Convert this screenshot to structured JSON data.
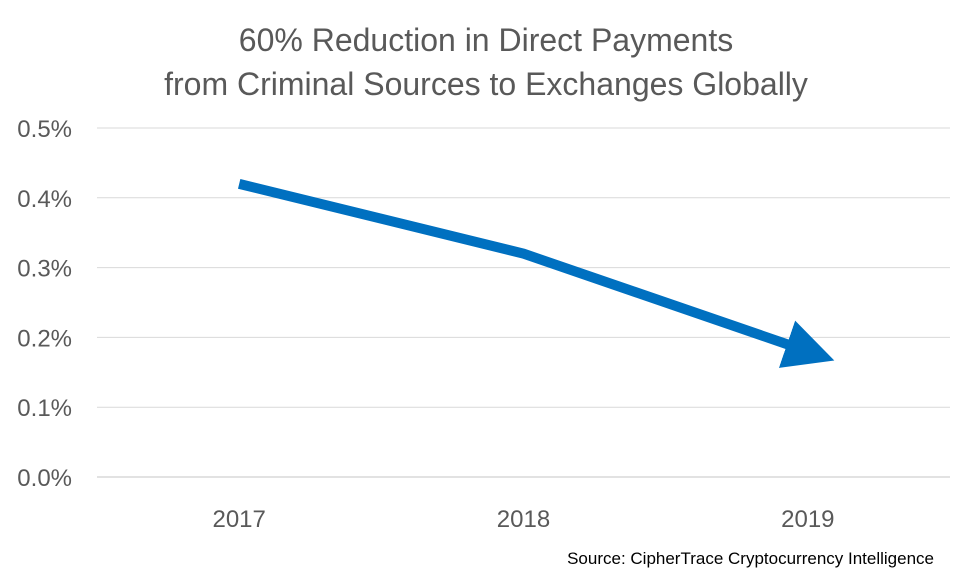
{
  "chart_data": {
    "type": "line",
    "title_lines": [
      "60% Reduction in Direct Payments",
      "from Criminal Sources to Exchanges Globally"
    ],
    "categories": [
      "2017",
      "2018",
      "2019"
    ],
    "series": [
      {
        "values": [
          0.42,
          0.32,
          0.18
        ]
      }
    ],
    "y_ticks": [
      "0.0%",
      "0.1%",
      "0.2%",
      "0.3%",
      "0.4%",
      "0.5%"
    ],
    "ylim": [
      0,
      0.5
    ],
    "y_unit": "%",
    "grid": true,
    "line_end": "arrow",
    "legend": "none",
    "colors": {
      "line": "#0070C0",
      "grid": "#D9D9D9",
      "text": "#595959"
    }
  },
  "source_note": "Source: CipherTrace Cryptocurrency Intelligence"
}
